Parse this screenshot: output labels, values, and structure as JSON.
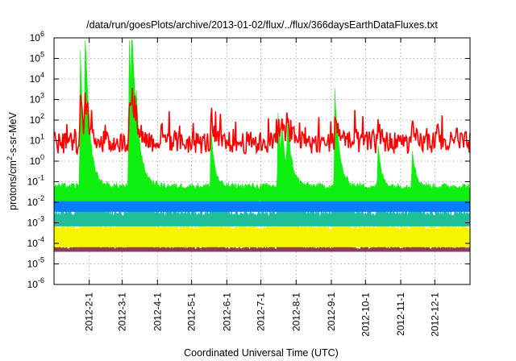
{
  "chart_data": {
    "type": "area",
    "title": "/data/run/goesPlots/archive/2013-01-02/flux/../flux/366daysEarthDataFluxes.txt",
    "xlabel": "Coordinated Universal Time (UTC)",
    "ylabel_main": "protons/cm",
    "ylabel_sup": "2",
    "ylabel_rest": "-s-sr-MeV",
    "yscale": "log",
    "ylim_exp": [
      -6,
      6
    ],
    "y_ticks": [
      {
        "base": "10",
        "exp": "-6"
      },
      {
        "base": "10",
        "exp": "-5"
      },
      {
        "base": "10",
        "exp": "-4"
      },
      {
        "base": "10",
        "exp": "-3"
      },
      {
        "base": "10",
        "exp": "-2"
      },
      {
        "base": "10",
        "exp": "-1"
      },
      {
        "base": "10",
        "exp": "0"
      },
      {
        "base": "10",
        "exp": "1"
      },
      {
        "base": "10",
        "exp": "2"
      },
      {
        "base": "10",
        "exp": "3"
      },
      {
        "base": "10",
        "exp": "4"
      },
      {
        "base": "10",
        "exp": "5"
      },
      {
        "base": "10",
        "exp": "6"
      }
    ],
    "x_start_day": 0,
    "x_end_day": 366,
    "x_ticks": [
      {
        "label": "2012-2-1",
        "day": 31
      },
      {
        "label": "2012-3-1",
        "day": 60
      },
      {
        "label": "2012-4-1",
        "day": 91
      },
      {
        "label": "2012-5-1",
        "day": 121
      },
      {
        "label": "2012-6-1",
        "day": 152
      },
      {
        "label": "2012-7-1",
        "day": 182
      },
      {
        "label": "2012-8-1",
        "day": 213
      },
      {
        "label": "2012-9-1",
        "day": 244
      },
      {
        "label": "2012-10-1",
        "day": 274
      },
      {
        "label": "2012-11-1",
        "day": 305
      },
      {
        "label": "2012-12-1",
        "day": 335
      }
    ],
    "grid": true,
    "events": [
      {
        "day": 23,
        "amp": 3.5,
        "w": 3
      },
      {
        "day": 27,
        "amp": 4.2,
        "w": 4
      },
      {
        "day": 66,
        "amp": 4.0,
        "w": 3
      },
      {
        "day": 68,
        "amp": 4.3,
        "w": 5
      },
      {
        "day": 72,
        "amp": 2.5,
        "w": 4
      },
      {
        "day": 138,
        "amp": 1.5,
        "w": 3
      },
      {
        "day": 197,
        "amp": 1.8,
        "w": 3
      },
      {
        "day": 200,
        "amp": 1.6,
        "w": 4
      },
      {
        "day": 205,
        "amp": 1.8,
        "w": 4
      },
      {
        "day": 247,
        "amp": 2.3,
        "w": 4
      },
      {
        "day": 285,
        "amp": 1.0,
        "w": 3
      },
      {
        "day": 315,
        "amp": 1.0,
        "w": 3
      }
    ],
    "series": [
      {
        "color": "#8f3a66",
        "base": -4.2,
        "noise": 0.08,
        "gain": 0.8
      },
      {
        "color": "#f5f500",
        "base": -3.2,
        "noise": 0.15,
        "gain": 1.5
      },
      {
        "color": "#1fbf99",
        "base": -2.5,
        "noise": 0.18,
        "gain": 2.2
      },
      {
        "color": "#0a7cff",
        "base": -1.8,
        "noise": 0.18,
        "gain": 2.8
      },
      {
        "color": "#0000e0",
        "base": -2.0,
        "noise": 0.25,
        "gain": 3.0
      },
      {
        "color": "#10f010",
        "base": -1.2,
        "noise": 0.15,
        "gain": 3.4
      },
      {
        "color": "#ff0000",
        "base": 0.9,
        "noise": 0.55,
        "gain": 1.0
      }
    ]
  }
}
